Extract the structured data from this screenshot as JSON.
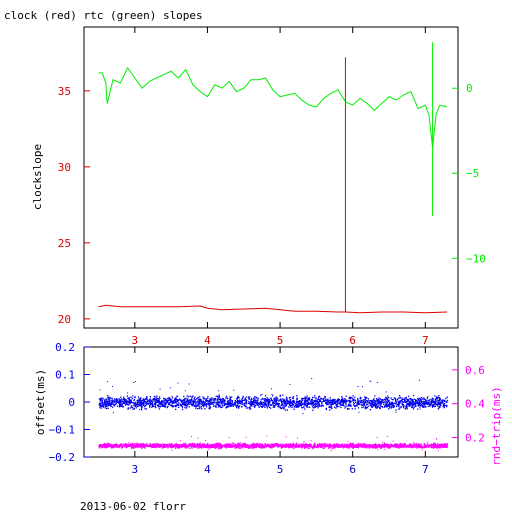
{
  "title": "clock (red) rtc (green) slopes",
  "footer": "2013-06-02 florr",
  "colors": {
    "clock": "#dd0000",
    "rtc": "#00ee00",
    "offset": "#0000ee",
    "rndtrip": "#ff00ff",
    "axis": "#000000"
  },
  "chart_data": [
    {
      "type": "line",
      "title": "clock (red) rtc (green) slopes",
      "xlim": [
        2.3,
        7.45
      ],
      "x_ticks": [
        3,
        4,
        5,
        6,
        7
      ],
      "y_left": {
        "label": "clockslope",
        "lim": [
          19.4,
          39.2
        ],
        "ticks": [
          20,
          25,
          30,
          35
        ]
      },
      "y_right": {
        "label": "",
        "lim": [
          -14.1,
          3.6
        ],
        "ticks": [
          0,
          -5,
          -10
        ]
      },
      "series": [
        {
          "name": "clock",
          "axis": "left",
          "x": [
            2.5,
            2.6,
            2.8,
            3.0,
            3.3,
            3.6,
            3.9,
            4.0,
            4.2,
            4.5,
            4.8,
            5.0,
            5.2,
            5.5,
            5.8,
            5.9,
            6.1,
            6.4,
            6.7,
            7.0,
            7.3
          ],
          "y": [
            20.8,
            20.9,
            20.8,
            20.8,
            20.8,
            20.8,
            20.85,
            20.7,
            20.6,
            20.65,
            20.7,
            20.6,
            20.5,
            20.5,
            20.45,
            20.45,
            20.4,
            20.45,
            20.45,
            20.4,
            20.45
          ],
          "spikes": [
            {
              "x": 5.9,
              "y_from": 20.45,
              "y_to": 37.2
            }
          ]
        },
        {
          "name": "rtc",
          "axis": "right",
          "x": [
            2.5,
            2.55,
            2.6,
            2.62,
            2.7,
            2.8,
            2.9,
            3.0,
            3.1,
            3.2,
            3.3,
            3.4,
            3.5,
            3.6,
            3.7,
            3.8,
            3.9,
            4.0,
            4.1,
            4.2,
            4.3,
            4.4,
            4.5,
            4.6,
            4.7,
            4.8,
            4.9,
            5.0,
            5.1,
            5.2,
            5.3,
            5.4,
            5.5,
            5.6,
            5.7,
            5.8,
            5.9,
            6.0,
            6.1,
            6.2,
            6.3,
            6.4,
            6.5,
            6.6,
            6.7,
            6.8,
            6.9,
            7.0,
            7.05,
            7.1,
            7.15,
            7.2,
            7.3
          ],
          "y": [
            0.9,
            0.9,
            0.3,
            -0.9,
            0.5,
            0.3,
            1.2,
            0.6,
            0.0,
            0.4,
            0.6,
            0.8,
            1.0,
            0.6,
            1.1,
            0.2,
            -0.2,
            -0.5,
            0.2,
            0.0,
            0.4,
            -0.2,
            0.0,
            0.5,
            0.5,
            0.6,
            -0.1,
            -0.5,
            -0.4,
            -0.3,
            -0.7,
            -1.0,
            -1.1,
            -0.6,
            -0.3,
            -0.1,
            -0.8,
            -1.0,
            -0.6,
            -0.9,
            -1.3,
            -0.9,
            -0.5,
            -0.7,
            -0.4,
            -0.2,
            -1.2,
            -1.0,
            -1.6,
            -3.5,
            -1.5,
            -1.0,
            -1.1
          ],
          "spikes": [
            {
              "x": 7.1,
              "y_from": -1.2,
              "y_to": 2.7
            },
            {
              "x": 7.1,
              "y_from": -1.2,
              "y_to": -7.5
            }
          ]
        }
      ]
    },
    {
      "type": "scatter",
      "xlim": [
        2.3,
        7.45
      ],
      "x_ticks": [
        3,
        4,
        5,
        6,
        7
      ],
      "y_left": {
        "label": "offset(ms)",
        "lim": [
          -0.2,
          0.2
        ],
        "ticks": [
          0.2,
          0.1,
          0.0,
          -0.1,
          -0.2
        ],
        "tick_labels": [
          "0.2",
          "0.1",
          "0",
          "−0.1",
          "−0.2"
        ]
      },
      "y_right": {
        "label": "rnd−trip(ms)",
        "lim": [
          0.085,
          0.735
        ],
        "ticks": [
          0.2,
          0.4,
          0.6
        ],
        "tick_labels": [
          "0.2",
          "0.4",
          "0.6"
        ]
      },
      "series": [
        {
          "name": "offset",
          "axis": "left",
          "x_range": [
            2.5,
            7.3
          ],
          "center": 0.0,
          "spread": 0.015
        },
        {
          "name": "rnd-trip",
          "axis": "right",
          "x_range": [
            2.5,
            7.3
          ],
          "center": 0.155,
          "spread": 0.009
        }
      ]
    }
  ]
}
